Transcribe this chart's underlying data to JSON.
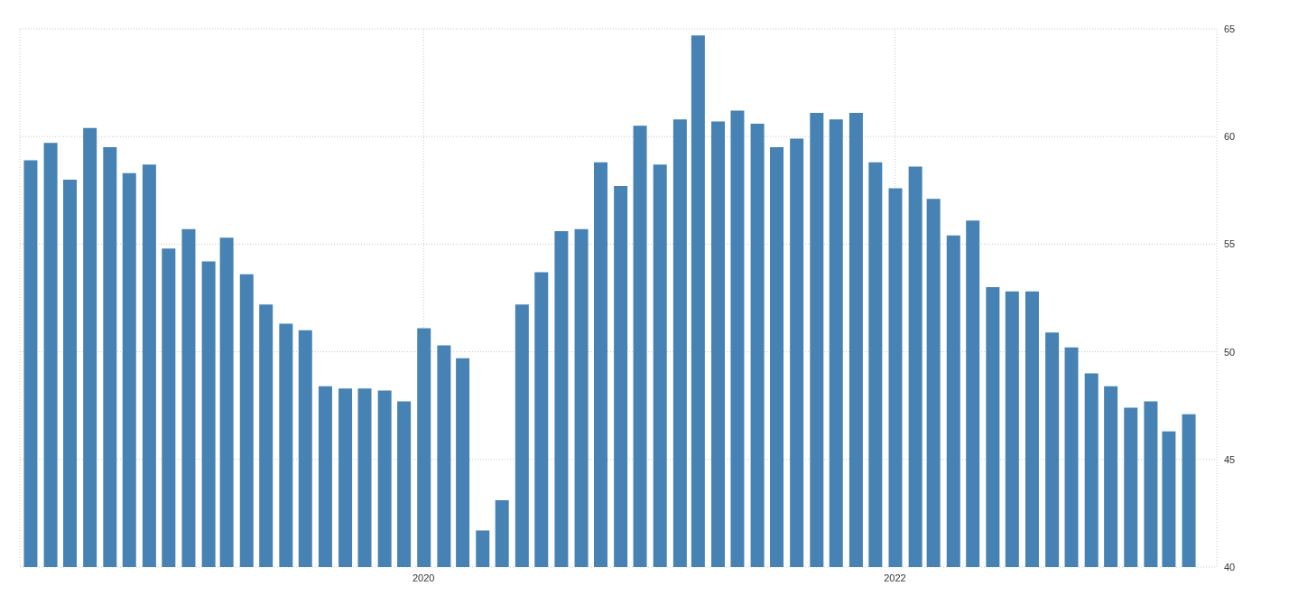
{
  "chart_data": {
    "type": "bar",
    "x": [
      "2018-05",
      "2018-06",
      "2018-07",
      "2018-08",
      "2018-09",
      "2018-10",
      "2018-11",
      "2018-12",
      "2019-01",
      "2019-02",
      "2019-03",
      "2019-04",
      "2019-05",
      "2019-06",
      "2019-07",
      "2019-08",
      "2019-09",
      "2019-10",
      "2019-11",
      "2019-12",
      "2020-01",
      "2020-02",
      "2020-03",
      "2020-04",
      "2020-05",
      "2020-06",
      "2020-07",
      "2020-08",
      "2020-09",
      "2020-10",
      "2020-11",
      "2020-12",
      "2021-01",
      "2021-02",
      "2021-03",
      "2021-04",
      "2021-05",
      "2021-06",
      "2021-07",
      "2021-08",
      "2021-09",
      "2021-10",
      "2021-11",
      "2021-12",
      "2022-01",
      "2022-02",
      "2022-03",
      "2022-04",
      "2022-05",
      "2022-06",
      "2022-07",
      "2022-08",
      "2022-09",
      "2022-10",
      "2022-11",
      "2022-12",
      "2023-01",
      "2023-02",
      "2023-03",
      "2023-04"
    ],
    "values": [
      58.9,
      59.7,
      58.0,
      60.4,
      59.5,
      58.3,
      58.7,
      54.8,
      55.7,
      54.2,
      55.3,
      53.6,
      52.2,
      51.3,
      51.0,
      48.4,
      48.3,
      48.3,
      48.2,
      47.7,
      51.1,
      50.3,
      49.7,
      41.7,
      43.1,
      52.2,
      53.7,
      55.6,
      55.7,
      58.8,
      57.7,
      60.5,
      58.7,
      60.8,
      64.7,
      60.7,
      61.2,
      60.6,
      59.5,
      59.9,
      61.1,
      60.8,
      61.1,
      58.8,
      57.6,
      58.6,
      57.1,
      55.4,
      56.1,
      53.0,
      52.8,
      52.8,
      50.9,
      50.2,
      49.0,
      48.4,
      47.4,
      47.7,
      46.3,
      47.1
    ],
    "color": "#4682b4",
    "xlim": [
      "2018-04-15",
      "2023-05-15"
    ],
    "xticks": [
      {
        "value": "2020-01",
        "label": "2020"
      },
      {
        "value": "2022-01",
        "label": "2022"
      }
    ],
    "ylim": [
      40,
      65
    ],
    "yticks": [
      40,
      45,
      50,
      55,
      60,
      65
    ],
    "grid": true
  }
}
